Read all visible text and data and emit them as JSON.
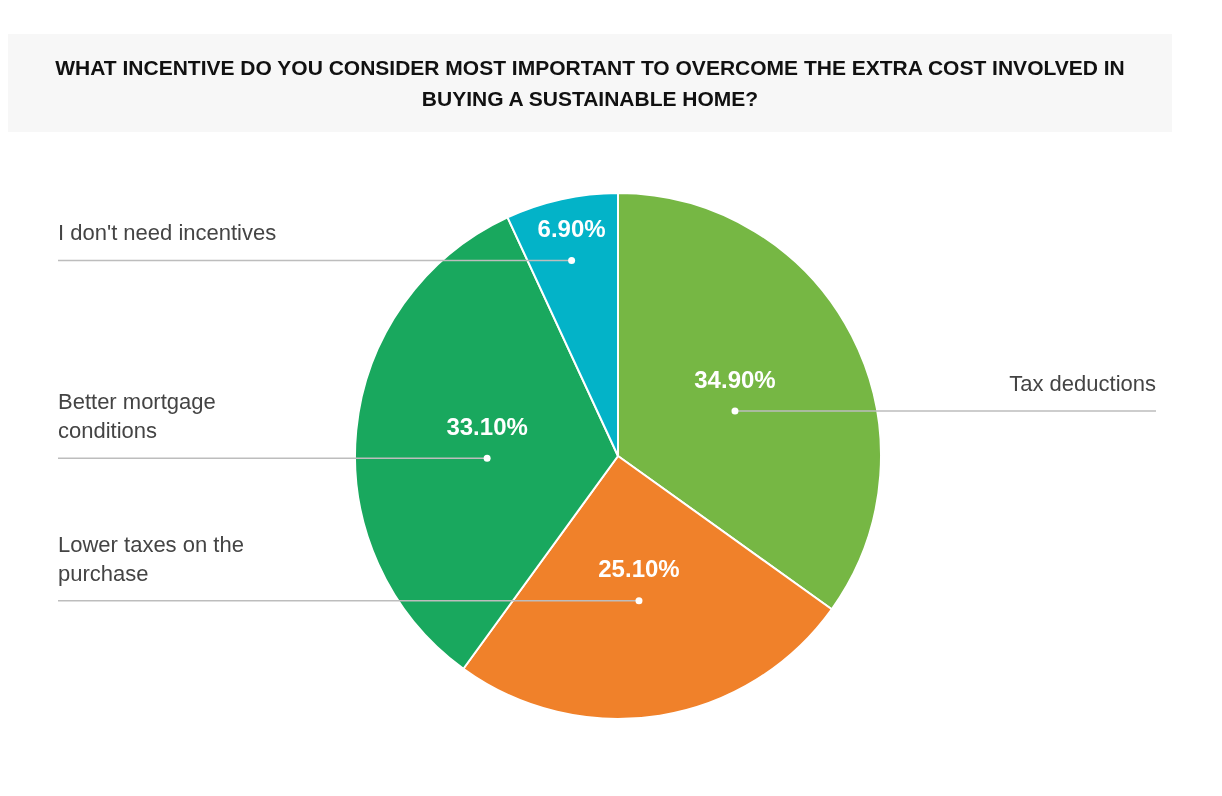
{
  "chart_data": {
    "type": "pie",
    "title": "WHAT INCENTIVE DO YOU CONSIDER MOST IMPORTANT TO OVERCOME THE EXTRA COST INVOLVED IN BUYING A SUSTAINABLE HOME?",
    "categories": [
      "Tax deductions",
      "Lower taxes on the purchase",
      "Better mortgage conditions",
      "I don't need incentives"
    ],
    "values": [
      34.9,
      25.1,
      33.1,
      6.9
    ],
    "value_labels": [
      "34.90%",
      "25.10%",
      "33.10%",
      "6.90%"
    ],
    "colors": [
      "#76b744",
      "#f0812a",
      "#19a85e",
      "#03b3c8"
    ],
    "legend": false
  }
}
